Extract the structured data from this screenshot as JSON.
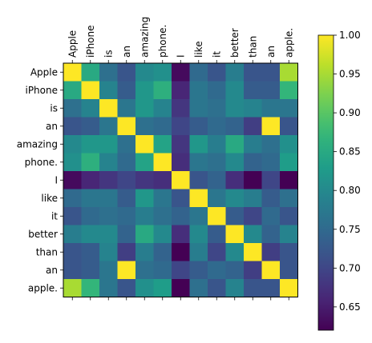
{
  "chart_data": {
    "type": "heatmap",
    "x_labels": [
      "Apple",
      "iPhone",
      "is",
      "an",
      "amazing",
      "phone.",
      "I",
      "like",
      "it",
      "better",
      "than",
      "an",
      "apple."
    ],
    "y_labels": [
      "Apple",
      "iPhone",
      "is",
      "an",
      "amazing",
      "phone.",
      "I",
      "like",
      "it",
      "better",
      "than",
      "an",
      "apple."
    ],
    "values": [
      [
        1.0,
        0.85,
        0.76,
        0.72,
        0.8,
        0.81,
        0.63,
        0.75,
        0.72,
        0.78,
        0.72,
        0.72,
        0.95
      ],
      [
        0.85,
        1.0,
        0.79,
        0.73,
        0.82,
        0.86,
        0.66,
        0.77,
        0.75,
        0.8,
        0.73,
        0.73,
        0.87
      ],
      [
        0.76,
        0.79,
        1.0,
        0.77,
        0.82,
        0.79,
        0.68,
        0.77,
        0.76,
        0.8,
        0.79,
        0.77,
        0.77
      ],
      [
        0.72,
        0.73,
        0.77,
        1.0,
        0.76,
        0.75,
        0.7,
        0.73,
        0.75,
        0.74,
        0.69,
        1.0,
        0.72
      ],
      [
        0.8,
        0.82,
        0.82,
        0.76,
        1.0,
        0.84,
        0.68,
        0.82,
        0.78,
        0.85,
        0.78,
        0.76,
        0.81
      ],
      [
        0.81,
        0.86,
        0.79,
        0.75,
        0.84,
        1.0,
        0.67,
        0.77,
        0.76,
        0.8,
        0.74,
        0.75,
        0.83
      ],
      [
        0.63,
        0.66,
        0.68,
        0.7,
        0.68,
        0.67,
        1.0,
        0.72,
        0.74,
        0.67,
        0.62,
        0.7,
        0.62
      ],
      [
        0.75,
        0.77,
        0.77,
        0.73,
        0.82,
        0.77,
        0.72,
        1.0,
        0.77,
        0.8,
        0.78,
        0.73,
        0.76
      ],
      [
        0.72,
        0.75,
        0.76,
        0.75,
        0.78,
        0.76,
        0.74,
        0.77,
        1.0,
        0.73,
        0.7,
        0.75,
        0.72
      ],
      [
        0.78,
        0.8,
        0.8,
        0.74,
        0.85,
        0.8,
        0.67,
        0.8,
        0.73,
        1.0,
        0.8,
        0.74,
        0.79
      ],
      [
        0.72,
        0.73,
        0.79,
        0.69,
        0.78,
        0.74,
        0.62,
        0.78,
        0.7,
        0.8,
        1.0,
        0.69,
        0.72
      ],
      [
        0.72,
        0.73,
        0.77,
        1.0,
        0.76,
        0.75,
        0.7,
        0.73,
        0.75,
        0.74,
        0.69,
        1.0,
        0.72
      ],
      [
        0.95,
        0.87,
        0.77,
        0.72,
        0.81,
        0.83,
        0.62,
        0.76,
        0.72,
        0.79,
        0.72,
        0.72,
        1.0
      ]
    ],
    "colormap": "viridis",
    "vmin": 0.62,
    "vmax": 1.0,
    "colorbar_ticks": [
      "0.65",
      "0.70",
      "0.75",
      "0.80",
      "0.85",
      "0.90",
      "0.95",
      "1.00"
    ],
    "colorbar_tick_values": [
      0.65,
      0.7,
      0.75,
      0.8,
      0.85,
      0.9,
      0.95,
      1.0
    ],
    "title": "",
    "xlabel": "",
    "ylabel": "",
    "x_tick_position": "top",
    "grid": false
  }
}
